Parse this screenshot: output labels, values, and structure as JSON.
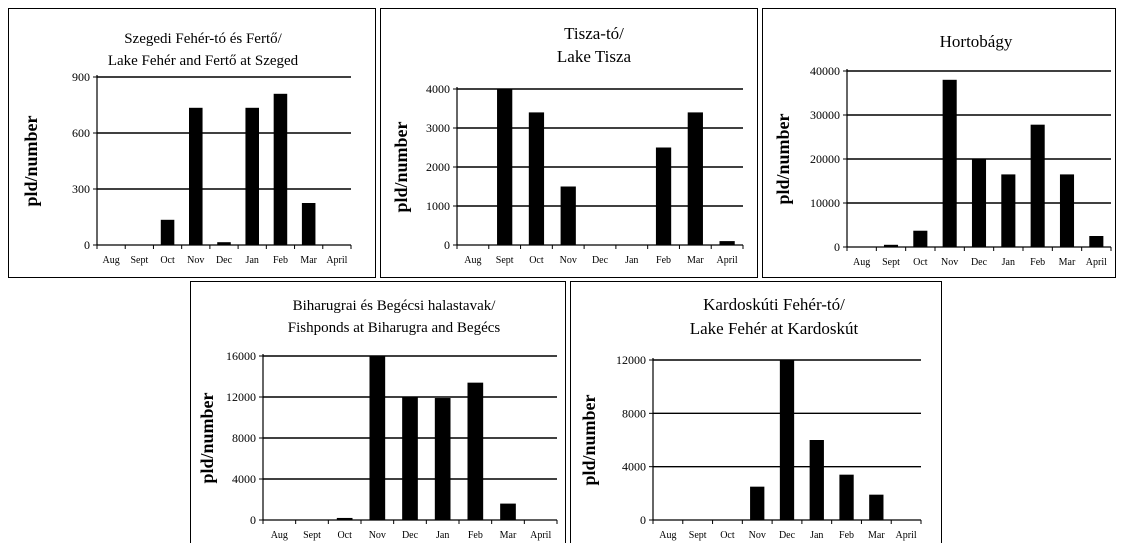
{
  "chart_data": [
    {
      "type": "bar",
      "title": [
        "Szegedi Fehér-tó és Fertő/",
        "Lake Fehér and Fertő at Szeged"
      ],
      "ylabel": "pld/number",
      "categories": [
        "Aug",
        "Sept",
        "Oct",
        "Nov",
        "Dec",
        "Jan",
        "Feb",
        "Mar",
        "April"
      ],
      "values": [
        0,
        0,
        135,
        735,
        15,
        735,
        810,
        225,
        0
      ],
      "yticks": [
        0,
        300,
        600,
        900
      ],
      "ylim": [
        0,
        900
      ],
      "grid": true,
      "bar_color": "#000000"
    },
    {
      "type": "bar",
      "title": [
        "Tisza-tó/",
        "Lake Tisza"
      ],
      "ylabel": "pld/number",
      "categories": [
        "Aug",
        "Sept",
        "Oct",
        "Nov",
        "Dec",
        "Jan",
        "Feb",
        "Mar",
        "April"
      ],
      "values": [
        0,
        4000,
        3400,
        1500,
        0,
        0,
        2500,
        3400,
        100
      ],
      "yticks": [
        0,
        1000,
        2000,
        3000,
        4000
      ],
      "ylim": [
        0,
        4000
      ],
      "grid": true,
      "bar_color": "#000000"
    },
    {
      "type": "bar",
      "title": [
        "Hortobágy"
      ],
      "ylabel": "pld/number",
      "categories": [
        "Aug",
        "Sept",
        "Oct",
        "Nov",
        "Dec",
        "Jan",
        "Feb",
        "Mar",
        "April"
      ],
      "values": [
        0,
        500,
        3700,
        38000,
        20000,
        16500,
        27800,
        16500,
        2500
      ],
      "yticks": [
        0,
        10000,
        20000,
        30000,
        40000
      ],
      "ylim": [
        0,
        40000
      ],
      "grid": true,
      "bar_color": "#000000"
    },
    {
      "type": "bar",
      "title": [
        "Biharugrai és Begécsi halastavak/",
        "Fishponds at Biharugra and Begécs"
      ],
      "ylabel": "pld/number",
      "categories": [
        "Aug",
        "Sept",
        "Oct",
        "Nov",
        "Dec",
        "Jan",
        "Feb",
        "Mar",
        "April"
      ],
      "values": [
        0,
        0,
        200,
        16000,
        12000,
        11900,
        13400,
        1600,
        0
      ],
      "yticks": [
        0,
        4000,
        8000,
        12000,
        16000
      ],
      "ylim": [
        0,
        16000
      ],
      "grid": true,
      "bar_color": "#000000"
    },
    {
      "type": "bar",
      "title": [
        "Kardoskúti Fehér-tó/",
        "Lake Fehér at Kardoskút"
      ],
      "ylabel": "pld/number",
      "categories": [
        "Aug",
        "Sept",
        "Oct",
        "Nov",
        "Dec",
        "Jan",
        "Feb",
        "Mar",
        "April"
      ],
      "values": [
        0,
        0,
        0,
        2500,
        12000,
        6000,
        3400,
        1900,
        0
      ],
      "yticks": [
        0,
        4000,
        8000,
        12000
      ],
      "ylim": [
        0,
        12000
      ],
      "grid": true,
      "bar_color": "#000000"
    }
  ]
}
